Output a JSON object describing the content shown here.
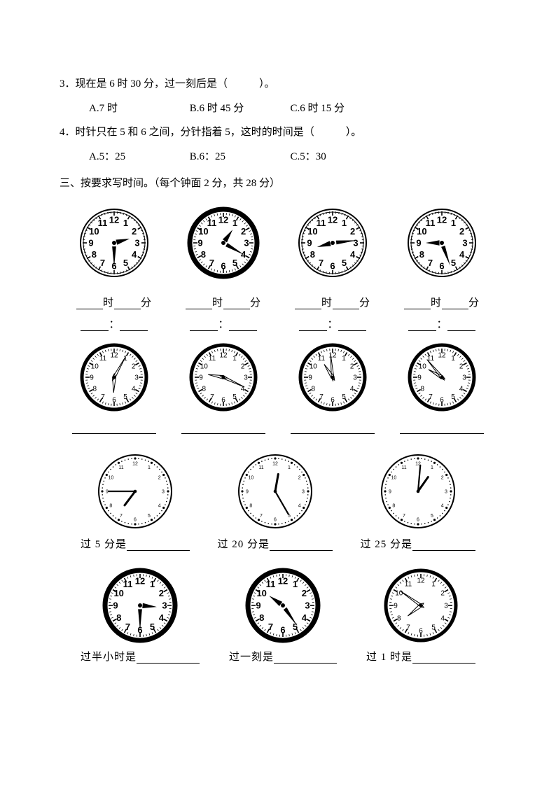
{
  "q3": {
    "num": "3．",
    "text": "现在是 6 时 30 分，过一刻后是（　　　）。",
    "opts": {
      "a": "A.7 时",
      "b": "B.6 时 45 分",
      "c": "C.6 时 15 分"
    }
  },
  "q4": {
    "num": "4．",
    "text": "时针只在 5 和 6 之间，分针指着 5，这时的时间是（　　　）。",
    "opts": {
      "a": "A.5：25",
      "b": "B.6：25",
      "c": "C.5：30"
    }
  },
  "section3": "三、按要求写时间。（每个钟面 2 分，共 28 分）",
  "labels": {
    "shi": "时",
    "fen": "分",
    "colon": "：",
    "guo5": "过 5 分是",
    "guo20": "过 20 分是",
    "guo25": "过 25 分是",
    "guoBan": "过半小时是",
    "guoKe": "过一刻是",
    "guo1": "过 1 时是"
  },
  "clocks": {
    "row1": [
      {
        "r": 48,
        "style": "bold",
        "hourAngle": 75,
        "minAngle": 180,
        "frame": "double"
      },
      {
        "r": 48,
        "style": "bold",
        "hourAngle": 35,
        "minAngle": 120,
        "frame": "thickring"
      },
      {
        "r": 48,
        "style": "bold",
        "hourAngle": 255,
        "minAngle": 84,
        "frame": "double"
      },
      {
        "r": 48,
        "style": "bold",
        "hourAngle": 270,
        "minAngle": 160,
        "frame": "double"
      }
    ],
    "row2": [
      {
        "r": 46,
        "style": "light",
        "hourAngle": 182,
        "minAngle": 29,
        "frame": "ring"
      },
      {
        "r": 46,
        "style": "light",
        "hourAngle": 280,
        "minAngle": 115,
        "frame": "ring"
      },
      {
        "r": 46,
        "style": "light",
        "hourAngle": 327,
        "minAngle": 355,
        "frame": "ring"
      },
      {
        "r": 46,
        "style": "light",
        "hourAngle": 300,
        "minAngle": 320,
        "frame": "ring"
      }
    ],
    "row3": [
      {
        "r": 52,
        "style": "dotnum",
        "hourAngle": 217,
        "minAngle": 270,
        "frame": "thin"
      },
      {
        "r": 52,
        "style": "dotnum",
        "hourAngle": 10,
        "minAngle": 150,
        "frame": "thin"
      },
      {
        "r": 52,
        "style": "dotnum",
        "hourAngle": 35,
        "minAngle": 5,
        "frame": "thin"
      }
    ],
    "row4": [
      {
        "r": 50,
        "style": "bold",
        "hourAngle": 95,
        "minAngle": 180,
        "frame": "thickring"
      },
      {
        "r": 50,
        "style": "bold",
        "hourAngle": 305,
        "minAngle": 145,
        "frame": "thickring"
      },
      {
        "r": 50,
        "style": "light",
        "hourAngle": 231,
        "minAngle": 305,
        "frame": "ring"
      }
    ]
  },
  "colors": {
    "black": "#000000",
    "gray": "#666666"
  }
}
